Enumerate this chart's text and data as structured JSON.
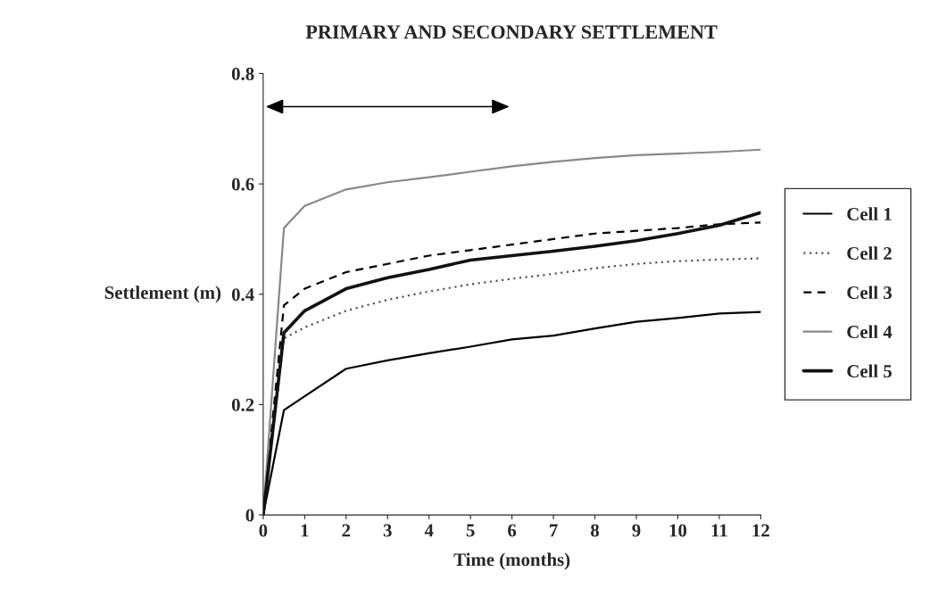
{
  "chart_data": {
    "type": "line",
    "title": "PRIMARY AND SECONDARY SETTLEMENT",
    "xlabel": "Time (months)",
    "ylabel": "Settlement (m)",
    "x": [
      0,
      0.5,
      1,
      2,
      3,
      4,
      5,
      6,
      7,
      8,
      9,
      10,
      11,
      12
    ],
    "series": [
      {
        "name": "Cell 1",
        "color": "#000000",
        "line_style": "solid",
        "values": [
          0,
          0.19,
          0.215,
          0.265,
          0.28,
          0.293,
          0.305,
          0.318,
          0.325,
          0.338,
          0.35,
          0.357,
          0.365,
          0.368
        ]
      },
      {
        "name": "Cell 2",
        "color": "#555555",
        "line_style": "dotted",
        "values": [
          0,
          0.32,
          0.34,
          0.37,
          0.39,
          0.405,
          0.418,
          0.428,
          0.437,
          0.447,
          0.455,
          0.46,
          0.463,
          0.465
        ]
      },
      {
        "name": "Cell 3",
        "color": "#000000",
        "line_style": "dashed",
        "values": [
          0,
          0.38,
          0.41,
          0.44,
          0.455,
          0.47,
          0.48,
          0.49,
          0.5,
          0.51,
          0.515,
          0.52,
          0.527,
          0.53
        ]
      },
      {
        "name": "Cell 4",
        "color": "#888888",
        "line_style": "solid",
        "values": [
          0,
          0.52,
          0.56,
          0.59,
          0.603,
          0.612,
          0.622,
          0.632,
          0.64,
          0.647,
          0.652,
          0.655,
          0.658,
          0.662
        ]
      },
      {
        "name": "Cell 5",
        "color": "#111111",
        "line_style": "solid",
        "values": [
          0,
          0.33,
          0.37,
          0.41,
          0.43,
          0.445,
          0.462,
          0.47,
          0.478,
          0.487,
          0.497,
          0.51,
          0.525,
          0.548
        ]
      }
    ],
    "xlim": [
      0,
      12
    ],
    "xticks": [
      0,
      1,
      2,
      3,
      4,
      5,
      6,
      7,
      8,
      9,
      10,
      11,
      12
    ],
    "ylim": [
      0,
      0.8
    ],
    "yticks": [
      0,
      0.2,
      0.4,
      0.6,
      0.8
    ],
    "grid": false,
    "legend": "right",
    "marker": "none"
  }
}
